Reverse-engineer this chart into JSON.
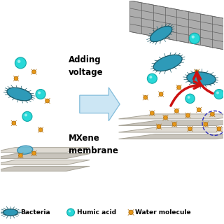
{
  "background_color": "#ffffff",
  "text_adding_voltage": "Adding\nvoltage",
  "text_mxene": "MXene\nmembrane",
  "legend_items": [
    {
      "label": "Bacteria",
      "color": "#3090a8"
    },
    {
      "label": "Humic acid",
      "color": "#30d4d4"
    },
    {
      "label": "Water molecule",
      "color": "#e8a020"
    }
  ],
  "arrow_fill": "#c8e4f4",
  "arrow_edge": "#7ab8d8",
  "red_arrow_color": "#cc1111",
  "mem_colors": [
    "#dedad2",
    "#c8c4bc",
    "#dedad2",
    "#c8c4bc"
  ],
  "mem_edge": "#a8a498",
  "bacteria_fill": "#2e9ab8",
  "bacteria_edge": "#1a5a6a",
  "humic_fill": "#28d8d8",
  "humic_edge": "#10a8a8",
  "water_fill": "#e89818",
  "water_edge": "#b07010",
  "grid_fill": "#909090",
  "grid_line": "#606060",
  "blob_fill": "#60b8d4",
  "blob_edge": "#2080a8",
  "dash_circle_color": "#3030bb"
}
